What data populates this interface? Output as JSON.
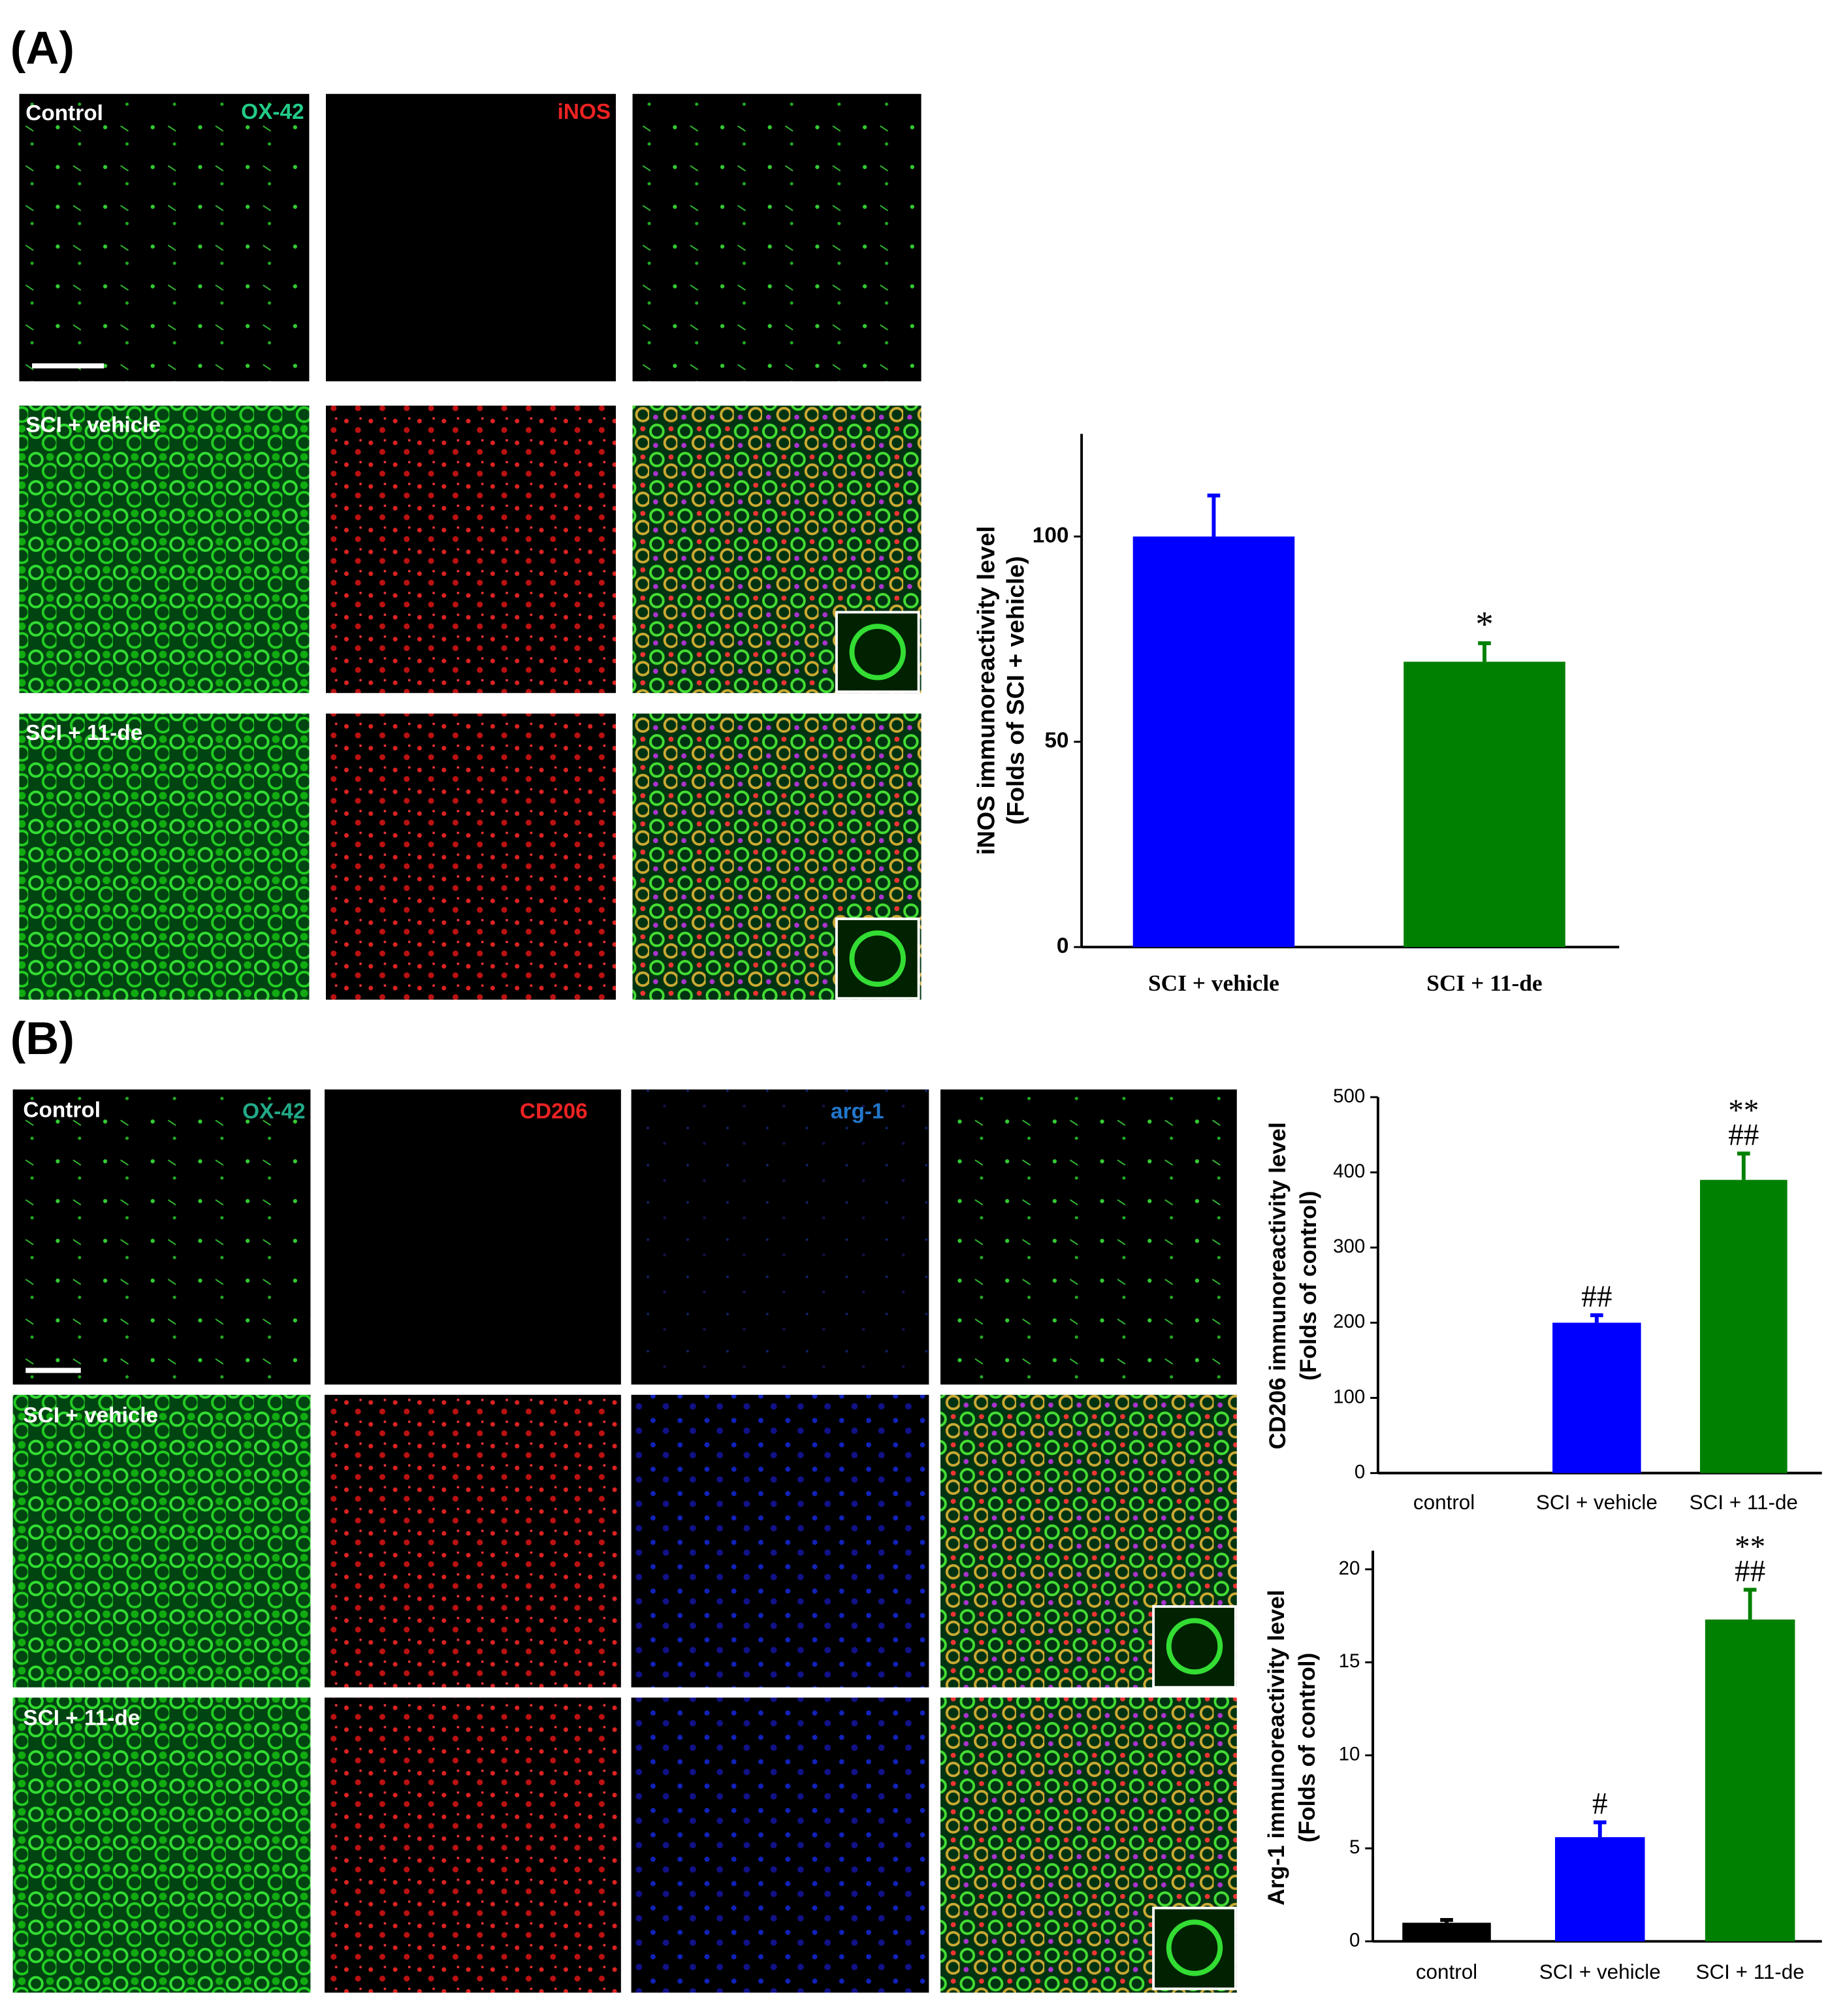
{
  "panel_a": {
    "label": "(A)",
    "rows": [
      "Control",
      "SCI + vehicle",
      "SCI + 11-de"
    ],
    "channels": [
      "OX-42",
      "iNOS"
    ]
  },
  "panel_b": {
    "label": "(B)",
    "rows": [
      "Control",
      "SCI + vehicle",
      "SCI + 11-de"
    ],
    "channels": [
      "OX-42",
      "CD206",
      "arg-1"
    ]
  },
  "chart_data": [
    {
      "type": "bar",
      "ylabel": [
        "iNOS immunoreactivity level",
        "(Folds of SCI + vehicle)"
      ],
      "categories": [
        "SCI + vehicle",
        "SCI + 11-de"
      ],
      "values": [
        100,
        69.5
      ],
      "errors": [
        10,
        4.5
      ],
      "colors": [
        "#0000ff",
        "#008000"
      ],
      "significance": [
        null,
        [
          "*"
        ]
      ],
      "ylim": [
        0,
        125
      ],
      "yticks": [
        0,
        50,
        100
      ]
    },
    {
      "type": "bar",
      "ylabel": [
        "CD206 immunoreactivity level",
        "(Folds of control)"
      ],
      "categories": [
        "control",
        "SCI + vehicle",
        "SCI + 11-de"
      ],
      "values": [
        0,
        200,
        390
      ],
      "errors": [
        null,
        10,
        35
      ],
      "colors": [
        "#000000",
        "#0000ff",
        "#008000"
      ],
      "significance": [
        null,
        [
          "##"
        ],
        [
          "**",
          "##"
        ]
      ],
      "ylim": [
        0,
        500
      ],
      "yticks": [
        0,
        100,
        200,
        300,
        400,
        500
      ]
    },
    {
      "type": "bar",
      "ylabel": [
        "Arg-1 immunoreactivity level",
        "(Folds of control)"
      ],
      "categories": [
        "control",
        "SCI + vehicle",
        "SCI + 11-de"
      ],
      "values": [
        1,
        5.6,
        17.3
      ],
      "errors": [
        0.15,
        0.8,
        1.6
      ],
      "colors": [
        "#000000",
        "#0000ff",
        "#008000"
      ],
      "significance": [
        null,
        [
          "#"
        ],
        [
          "**",
          "##"
        ]
      ],
      "ylim": [
        0,
        21
      ],
      "yticks": [
        0,
        5,
        10,
        15,
        20
      ]
    }
  ]
}
